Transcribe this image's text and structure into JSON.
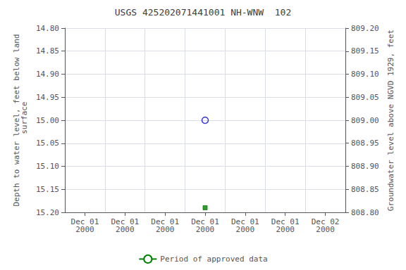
{
  "chart_data": {
    "type": "scatter",
    "title": "USGS 425202071441001 NH-WNW  102",
    "ylabel": "Depth to water level, feet below land\n surface",
    "y2label": "Groundwater level above NGVD 1929, feet",
    "categories": [
      "Dec 01\n2000",
      "Dec 01\n2000",
      "Dec 01\n2000",
      "Dec 01\n2000",
      "Dec 01\n2000",
      "Dec 01\n2000",
      "Dec 02\n2000"
    ],
    "series": [
      {
        "type": "scatter",
        "color": "#0000cc",
        "marker": "circle_open",
        "values": [
          null,
          null,
          null,
          15.0,
          null,
          null,
          null
        ]
      },
      {
        "type": "scatter",
        "color": "#008000",
        "marker": "square",
        "values": [
          null,
          null,
          null,
          15.19,
          null,
          null,
          null
        ]
      },
      {
        "type": "line",
        "name": "Period of approved data",
        "color": "#008000",
        "values": [
          null,
          null,
          null,
          null,
          null,
          null,
          null
        ]
      }
    ],
    "ylim": [
      15.2,
      14.8
    ],
    "yticks": [
      {
        "value": 14.8,
        "label": "14.80"
      },
      {
        "value": 14.85,
        "label": "14.85"
      },
      {
        "value": 14.9,
        "label": "14.90"
      },
      {
        "value": 14.95,
        "label": "14.95"
      },
      {
        "value": 15.0,
        "label": "15.00"
      },
      {
        "value": 15.05,
        "label": "15.05"
      },
      {
        "value": 15.1,
        "label": "15.10"
      },
      {
        "value": 15.15,
        "label": "15.15"
      },
      {
        "value": 15.2,
        "label": "15.20"
      }
    ],
    "y2lim": [
      808.8,
      809.2
    ],
    "y2ticks": [
      {
        "value": 809.2,
        "label": "809.20"
      },
      {
        "value": 809.15,
        "label": "809.15"
      },
      {
        "value": 809.1,
        "label": "809.10"
      },
      {
        "value": 809.05,
        "label": "809.05"
      },
      {
        "value": 809.0,
        "label": "809.00"
      },
      {
        "value": 808.95,
        "label": "808.95"
      },
      {
        "value": 808.9,
        "label": "808.90"
      },
      {
        "value": 808.85,
        "label": "808.85"
      },
      {
        "value": 808.8,
        "label": "808.80"
      }
    ],
    "grid": true,
    "legend": "bottom"
  }
}
